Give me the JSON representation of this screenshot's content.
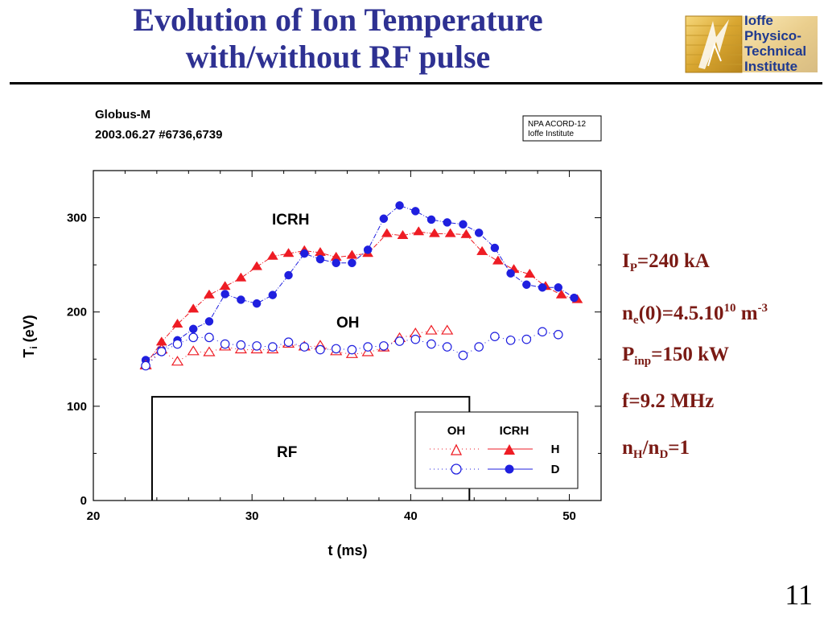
{
  "slide": {
    "title_line1": "Evolution of Ion Temperature",
    "title_line2": "with/without RF pulse",
    "page_number": "11",
    "logo_text": [
      "Ioffe",
      "Physico-",
      "Technical",
      "Institute"
    ],
    "params": [
      {
        "main": "I",
        "sub": "P",
        "rest": "=240 kA"
      },
      {
        "main": "n",
        "sub": "e",
        "mid": "(0)=4.5.10",
        "sup": "10",
        "rest": " m",
        "sup2": "-3"
      },
      {
        "main": "P",
        "sub": "inp",
        "rest": "=150 kW"
      },
      {
        "main": "f=9.2 MHz"
      },
      {
        "main": "n",
        "sub": "H",
        "mid": "/n",
        "sub2": "D",
        "rest": "=1"
      }
    ],
    "colors": {
      "title": "#2e3192",
      "params": "#7a1a14",
      "H": "#ee1c24",
      "D": "#1f1fdf"
    }
  },
  "chart_data": {
    "type": "scatter",
    "header_line1": "Globus-M",
    "header_line2": "2003.06.27  #6736,6739",
    "source_box": [
      "NPA ACORD-12",
      "Ioffe Institute"
    ],
    "xlabel": "t (ms)",
    "ylabel": "T",
    "ylabel_sub": "i",
    "ylabel_unit": " (eV)",
    "xlim": [
      20,
      52
    ],
    "ylim": [
      0,
      350
    ],
    "xticks": [
      20,
      30,
      40,
      50
    ],
    "yticks": [
      0,
      100,
      200,
      300
    ],
    "annotations": {
      "icrh": "ICRH",
      "oh": "OH",
      "rf": "RF"
    },
    "rf_pulse": {
      "t_on": 23.7,
      "t_off": 43.7,
      "level": 110
    },
    "legend": {
      "col_oh": "OH",
      "col_icrh": "ICRH",
      "row_h": "H",
      "row_d": "D",
      "position": "bottom-right"
    },
    "series": [
      {
        "key": "icrh_h",
        "marker": "triangle",
        "filled": true,
        "color": "#ee1c24",
        "line": "dash-dot",
        "x": [
          23.3,
          24.3,
          25.3,
          26.3,
          27.3,
          28.3,
          29.3,
          30.3,
          31.3,
          32.3,
          33.3,
          34.3,
          35.3,
          36.3,
          37.3,
          38.5,
          39.5,
          40.5,
          41.5,
          42.5,
          43.5,
          44.5,
          45.5,
          46.5,
          47.5,
          48.5,
          49.5,
          50.5
        ],
        "y": [
          144,
          168,
          187,
          203,
          218,
          227,
          236,
          248,
          259,
          262,
          265,
          263,
          258,
          260,
          262,
          283,
          281,
          285,
          283,
          283,
          282,
          264,
          254,
          245,
          240,
          227,
          218,
          213
        ]
      },
      {
        "key": "icrh_d",
        "marker": "circle",
        "filled": true,
        "color": "#1f1fdf",
        "line": "dash-dot",
        "x": [
          23.3,
          24.3,
          25.3,
          26.3,
          27.3,
          28.3,
          29.3,
          30.3,
          31.3,
          32.3,
          33.3,
          34.3,
          35.3,
          36.3,
          37.3,
          38.3,
          39.3,
          40.3,
          41.3,
          42.3,
          43.3,
          44.3,
          45.3,
          46.3,
          47.3,
          48.3,
          49.3,
          50.3
        ],
        "y": [
          149,
          160,
          170,
          182,
          190,
          219,
          213,
          209,
          218,
          239,
          262,
          256,
          252,
          252,
          266,
          299,
          313,
          307,
          298,
          295,
          293,
          284,
          268,
          241,
          229,
          226,
          226,
          215
        ]
      },
      {
        "key": "oh_h",
        "marker": "triangle",
        "filled": false,
        "color": "#ee1c24",
        "line": "dotted",
        "x": [
          23.3,
          24.3,
          25.3,
          26.3,
          27.3,
          28.3,
          29.3,
          30.3,
          31.3,
          32.3,
          33.3,
          34.3,
          35.3,
          36.3,
          37.3,
          38.3,
          39.3,
          40.3,
          41.3,
          42.3
        ],
        "y": [
          143,
          160,
          147,
          158,
          157,
          163,
          160,
          160,
          160,
          166,
          163,
          164,
          158,
          155,
          157,
          162,
          172,
          177,
          180,
          180
        ]
      },
      {
        "key": "oh_d",
        "marker": "circle",
        "filled": false,
        "color": "#1f1fdf",
        "line": "dotted",
        "x": [
          23.3,
          24.3,
          25.3,
          26.3,
          27.3,
          28.3,
          29.3,
          30.3,
          31.3,
          32.3,
          33.3,
          34.3,
          35.3,
          36.3,
          37.3,
          38.3,
          39.3,
          40.3,
          41.3,
          42.3,
          43.3,
          44.3,
          45.3,
          46.3,
          47.3,
          48.3,
          49.3
        ],
        "y": [
          143,
          158,
          166,
          173,
          173,
          166,
          165,
          164,
          163,
          168,
          163,
          160,
          161,
          160,
          163,
          164,
          169,
          171,
          166,
          163,
          154,
          163,
          174,
          170,
          171,
          179,
          176
        ]
      }
    ]
  }
}
